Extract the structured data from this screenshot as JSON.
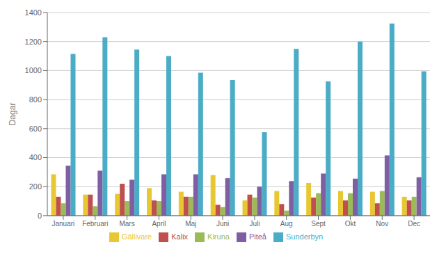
{
  "chart_data": {
    "type": "bar",
    "categories": [
      "Januari",
      "Februari",
      "Mars",
      "April",
      "Maj",
      "Juni",
      "Juli",
      "Aug",
      "Sept",
      "Okt",
      "Nov",
      "Dec"
    ],
    "series": [
      {
        "name": "Gällivare",
        "color": "#E8C832",
        "values": [
          285,
          145,
          150,
          190,
          165,
          280,
          105,
          170,
          225,
          170,
          165,
          130
        ]
      },
      {
        "name": "Kalix",
        "color": "#C0504D",
        "values": [
          130,
          145,
          220,
          105,
          130,
          75,
          145,
          80,
          125,
          105,
          85,
          105
        ]
      },
      {
        "name": "Kiruna",
        "color": "#9BBB59",
        "values": [
          85,
          65,
          100,
          100,
          130,
          60,
          125,
          35,
          155,
          155,
          170,
          130
        ]
      },
      {
        "name": "Piteå",
        "color": "#7F5EA3",
        "values": [
          345,
          310,
          248,
          285,
          285,
          258,
          200,
          238,
          290,
          255,
          415,
          265
        ]
      },
      {
        "name": "Sunderbyn",
        "color": "#4BACC6",
        "values": [
          1115,
          1230,
          1145,
          1100,
          985,
          935,
          575,
          1150,
          925,
          1200,
          1325,
          995
        ]
      }
    ],
    "ylabel": "Dagar",
    "ylim": [
      0,
      1400
    ],
    "yticks": [
      0,
      200,
      400,
      600,
      800,
      1000,
      1200,
      1400
    ],
    "grid": true,
    "legend": "bottom"
  }
}
